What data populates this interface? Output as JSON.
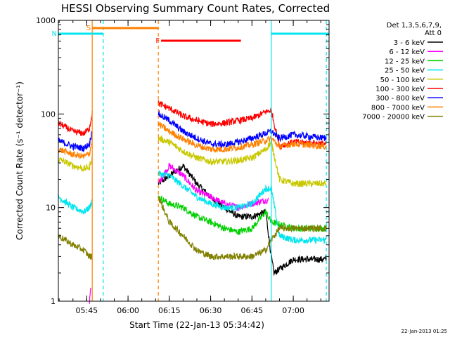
{
  "chart_data": {
    "type": "line",
    "title": "HESSI Observing Summary Count Rates, Corrected",
    "xlabel": "Start Time (22-Jan-13 05:34:42)",
    "ylabel": "Corrected Count Rate (s⁻¹ detector⁻¹)",
    "xlim": [
      "05:34:42",
      "07:13:00"
    ],
    "ylim": [
      1,
      1000
    ],
    "yscale": "log",
    "x_ticks": [
      "05:45",
      "06:00",
      "06:15",
      "06:30",
      "06:45",
      "07:00"
    ],
    "y_ticks": [
      "1",
      "10",
      "100",
      "1000"
    ],
    "legend": {
      "placement": "right",
      "header": [
        "Det 1,3,5,6,7,9,",
        "Att 0"
      ],
      "entries": [
        {
          "label": "3 - 6 keV",
          "color": "#000000"
        },
        {
          "label": "6 - 12 keV",
          "color": "#ff00ff"
        },
        {
          "label": "12 - 25 keV",
          "color": "#00d000"
        },
        {
          "label": "25 - 50 keV",
          "color": "#00e5ee"
        },
        {
          "label": "50 - 100 keV",
          "color": "#c8c800"
        },
        {
          "label": "100 - 300 keV",
          "color": "#ff0000"
        },
        {
          "label": "300 - 800 keV",
          "color": "#0000ff"
        },
        {
          "label": "800 - 7000 keV",
          "color": "#ff8000"
        },
        {
          "label": "7000 - 20000 keV",
          "color": "#808000"
        }
      ]
    },
    "flags": [
      {
        "label": "S",
        "start": "05:47",
        "end": "06:11",
        "color": "#ff8000"
      },
      {
        "label": "N",
        "start": "05:34:42",
        "end": "05:51",
        "color": "#00e5ee"
      },
      {
        "label": "F",
        "start": "06:12",
        "end": "06:41",
        "color": "#ff0000"
      },
      {
        "label": "",
        "start": "06:52",
        "end": "07:13",
        "color": "#00e5ee"
      }
    ],
    "vertical_markers": [
      {
        "time": "05:47",
        "color": "#ff8000",
        "style": "solid"
      },
      {
        "time": "05:51",
        "color": "#00e5ee",
        "style": "dashed"
      },
      {
        "time": "06:11",
        "color": "#ff8000",
        "style": "dashed"
      },
      {
        "time": "06:52",
        "color": "#00e5ee",
        "style": "solid"
      },
      {
        "time": "07:12",
        "color": "#00e5ee",
        "style": "dashed"
      }
    ],
    "gap": {
      "start": "05:47",
      "end": "06:11"
    },
    "series": [
      {
        "name": "3 - 6 keV",
        "color": "#000000",
        "x": [
          "06:11",
          "06:20",
          "06:25",
          "06:30",
          "06:35",
          "06:40",
          "06:45",
          "06:50",
          "06:52",
          "06:53",
          "07:00",
          "07:12"
        ],
        "y": [
          18,
          28,
          18,
          13,
          10,
          8,
          8,
          9,
          3,
          2,
          2.8,
          2.8
        ]
      },
      {
        "name": "6 - 12 keV",
        "color": "#ff00ff",
        "x": [
          "05:46",
          "05:46:30",
          "06:11",
          "06:15",
          "06:20",
          "06:25",
          "06:30",
          "06:35",
          "06:40",
          "06:45",
          "06:50",
          "06:51"
        ],
        "y": [
          1,
          1.5,
          18,
          28,
          22,
          15,
          13,
          11,
          10,
          11,
          12,
          12
        ]
      },
      {
        "name": "12 - 25 keV",
        "color": "#00d000",
        "x": [
          "06:11",
          "06:15",
          "06:20",
          "06:25",
          "06:30",
          "06:35",
          "06:40",
          "06:45",
          "06:50",
          "06:52",
          "07:00",
          "07:12"
        ],
        "y": [
          13,
          11,
          10,
          8,
          7,
          6,
          5.5,
          6,
          9,
          7,
          6,
          6
        ]
      },
      {
        "name": "25 - 50 keV",
        "color": "#00e5ee",
        "x": [
          "05:34:42",
          "05:40",
          "05:44",
          "05:46",
          "05:47",
          "06:11",
          "06:15",
          "06:20",
          "06:25",
          "06:30",
          "06:35",
          "06:40",
          "06:45",
          "06:50",
          "06:52",
          "06:55",
          "07:00",
          "07:12"
        ],
        "y": [
          13,
          10,
          9,
          10,
          12,
          23,
          22,
          17,
          13,
          11,
          10,
          10,
          11,
          16,
          16,
          5,
          4.5,
          4.5
        ]
      },
      {
        "name": "50 - 100 keV",
        "color": "#c8c800",
        "x": [
          "05:34:42",
          "05:40",
          "05:44",
          "05:46",
          "05:47",
          "06:11",
          "06:15",
          "06:20",
          "06:25",
          "06:30",
          "06:35",
          "06:40",
          "06:45",
          "06:50",
          "06:52",
          "06:55",
          "07:00",
          "07:12"
        ],
        "y": [
          33,
          28,
          26,
          27,
          35,
          55,
          50,
          40,
          34,
          31,
          31,
          32,
          34,
          42,
          50,
          20,
          18,
          18
        ]
      },
      {
        "name": "100 - 300 keV",
        "color": "#ff0000",
        "x": [
          "05:34:42",
          "05:40",
          "05:44",
          "05:46",
          "05:47",
          "06:11",
          "06:15",
          "06:20",
          "06:25",
          "06:30",
          "06:35",
          "06:40",
          "06:45",
          "06:50",
          "06:52",
          "06:55",
          "07:00",
          "07:12"
        ],
        "y": [
          80,
          65,
          62,
          70,
          105,
          130,
          115,
          95,
          85,
          78,
          80,
          85,
          90,
          105,
          110,
          45,
          50,
          48
        ]
      },
      {
        "name": "300 - 800 keV",
        "color": "#0000ff",
        "x": [
          "05:34:42",
          "05:40",
          "05:44",
          "05:46",
          "05:47",
          "06:11",
          "06:15",
          "06:20",
          "06:25",
          "06:30",
          "06:35",
          "06:40",
          "06:45",
          "06:50",
          "06:52",
          "06:55",
          "07:00",
          "07:12"
        ],
        "y": [
          52,
          45,
          43,
          48,
          68,
          100,
          85,
          65,
          55,
          48,
          47,
          50,
          55,
          62,
          65,
          55,
          60,
          55
        ]
      },
      {
        "name": "800 - 7000 keV",
        "color": "#ff8000",
        "x": [
          "05:34:42",
          "05:40",
          "05:44",
          "05:46",
          "05:47",
          "06:11",
          "06:15",
          "06:20",
          "06:25",
          "06:30",
          "06:35",
          "06:40",
          "06:45",
          "06:50",
          "06:52",
          "06:55",
          "07:00",
          "07:12"
        ],
        "y": [
          42,
          37,
          35,
          38,
          52,
          78,
          65,
          54,
          46,
          42,
          42,
          44,
          47,
          52,
          55,
          45,
          48,
          45
        ]
      },
      {
        "name": "7000 - 20000 keV",
        "color": "#808000",
        "x": [
          "05:34:42",
          "05:40",
          "05:44",
          "05:46",
          "05:47",
          "06:11",
          "06:15",
          "06:20",
          "06:25",
          "06:30",
          "06:35",
          "06:40",
          "06:45",
          "06:50",
          "06:52",
          "06:55",
          "07:00",
          "07:12"
        ],
        "y": [
          5,
          4,
          3.5,
          3,
          3,
          13,
          7,
          5,
          3.5,
          3,
          3,
          3,
          3,
          3.5,
          4.5,
          6,
          6,
          6
        ]
      }
    ]
  },
  "footer": {
    "timestamp": "22-Jan-2013 01:25"
  }
}
